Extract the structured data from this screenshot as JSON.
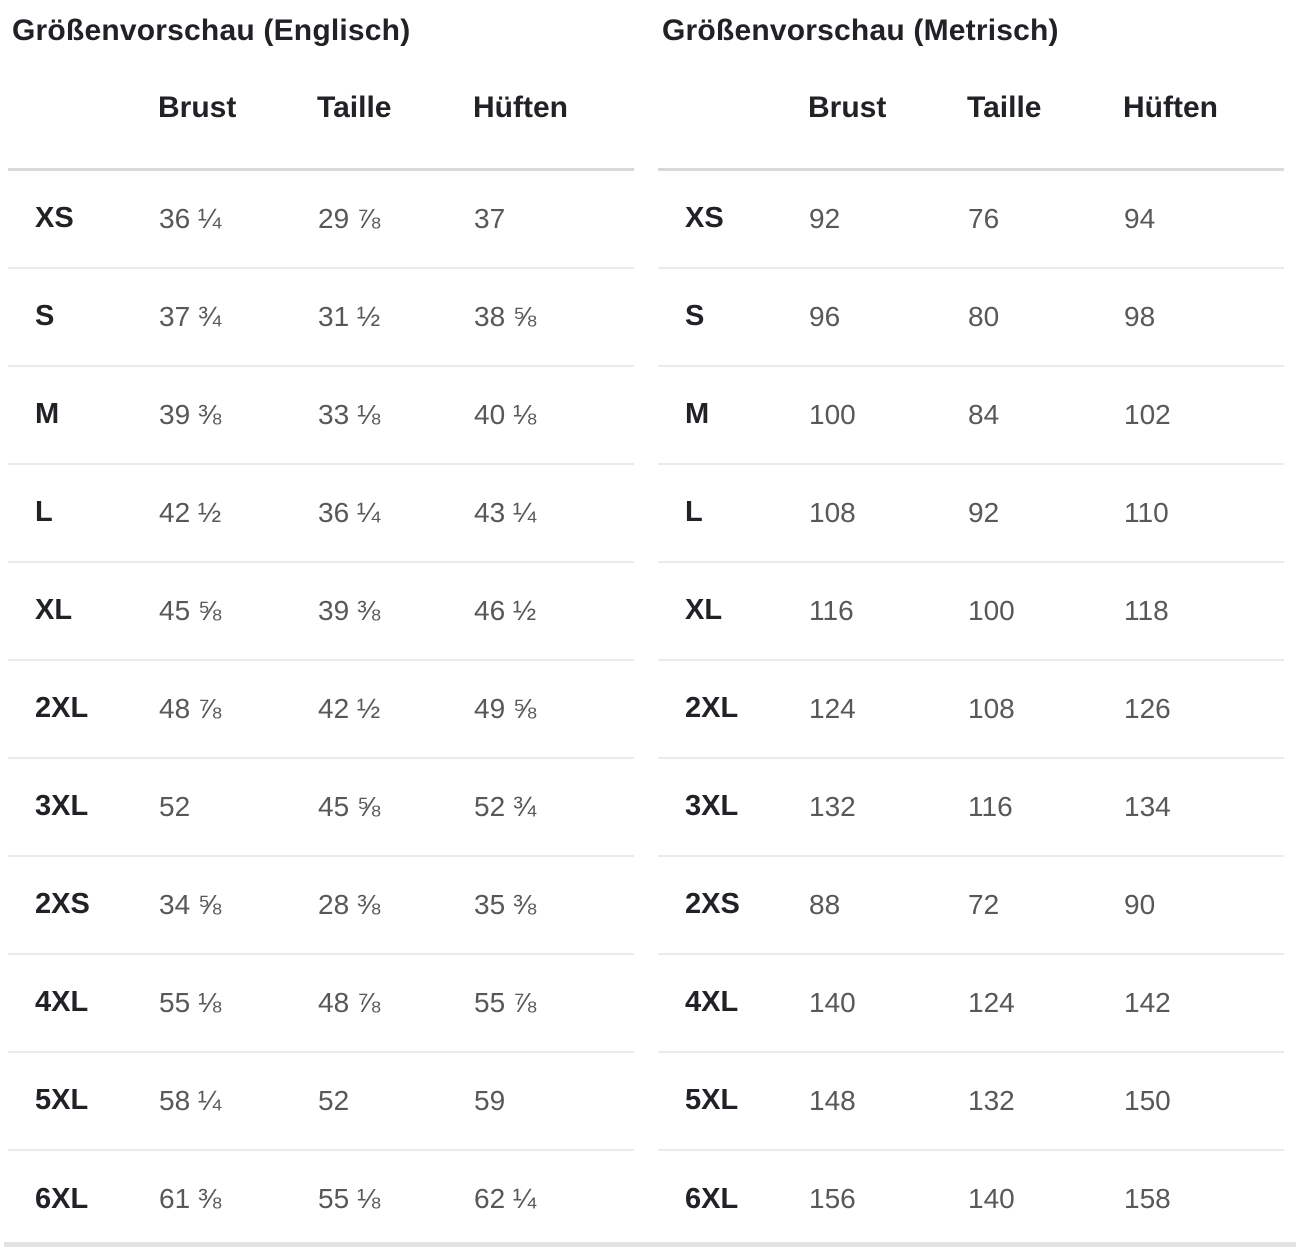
{
  "tables": [
    {
      "title": "Größenvorschau (Englisch)",
      "columns": [
        "Brust",
        "Taille",
        "Hüften"
      ],
      "rows": [
        {
          "size": "XS",
          "values": [
            "36 ¼",
            "29 ⅞",
            "37"
          ]
        },
        {
          "size": "S",
          "values": [
            "37 ¾",
            "31 ½",
            "38 ⅝"
          ]
        },
        {
          "size": "M",
          "values": [
            "39 ⅜",
            "33 ⅛",
            "40 ⅛"
          ]
        },
        {
          "size": "L",
          "values": [
            "42 ½",
            "36 ¼",
            "43 ¼"
          ]
        },
        {
          "size": "XL",
          "values": [
            "45 ⅝",
            "39 ⅜",
            "46 ½"
          ]
        },
        {
          "size": "2XL",
          "values": [
            "48 ⅞",
            "42 ½",
            "49 ⅝"
          ]
        },
        {
          "size": "3XL",
          "values": [
            "52",
            "45 ⅝",
            "52 ¾"
          ]
        },
        {
          "size": "2XS",
          "values": [
            "34 ⅝",
            "28 ⅜",
            "35 ⅜"
          ]
        },
        {
          "size": "4XL",
          "values": [
            "55 ⅛",
            "48 ⅞",
            "55 ⅞"
          ]
        },
        {
          "size": "5XL",
          "values": [
            "58 ¼",
            "52",
            "59"
          ]
        },
        {
          "size": "6XL",
          "values": [
            "61 ⅜",
            "55 ⅛",
            "62 ¼"
          ]
        }
      ]
    },
    {
      "title": "Größenvorschau (Metrisch)",
      "columns": [
        "Brust",
        "Taille",
        "Hüften"
      ],
      "rows": [
        {
          "size": "XS",
          "values": [
            "92",
            "76",
            "94"
          ]
        },
        {
          "size": "S",
          "values": [
            "96",
            "80",
            "98"
          ]
        },
        {
          "size": "M",
          "values": [
            "100",
            "84",
            "102"
          ]
        },
        {
          "size": "L",
          "values": [
            "108",
            "92",
            "110"
          ]
        },
        {
          "size": "XL",
          "values": [
            "116",
            "100",
            "118"
          ]
        },
        {
          "size": "2XL",
          "values": [
            "124",
            "108",
            "126"
          ]
        },
        {
          "size": "3XL",
          "values": [
            "132",
            "116",
            "134"
          ]
        },
        {
          "size": "2XS",
          "values": [
            "88",
            "72",
            "90"
          ]
        },
        {
          "size": "4XL",
          "values": [
            "140",
            "124",
            "142"
          ]
        },
        {
          "size": "5XL",
          "values": [
            "148",
            "132",
            "150"
          ]
        },
        {
          "size": "6XL",
          "values": [
            "156",
            "140",
            "158"
          ]
        }
      ]
    }
  ],
  "colors": {
    "heading_text": "#212126",
    "value_text": "#58585b",
    "header_rule": "#d9d9d9",
    "row_rule": "#eaeaea",
    "bottom_rule": "#e2e2e2",
    "background": "#ffffff"
  }
}
